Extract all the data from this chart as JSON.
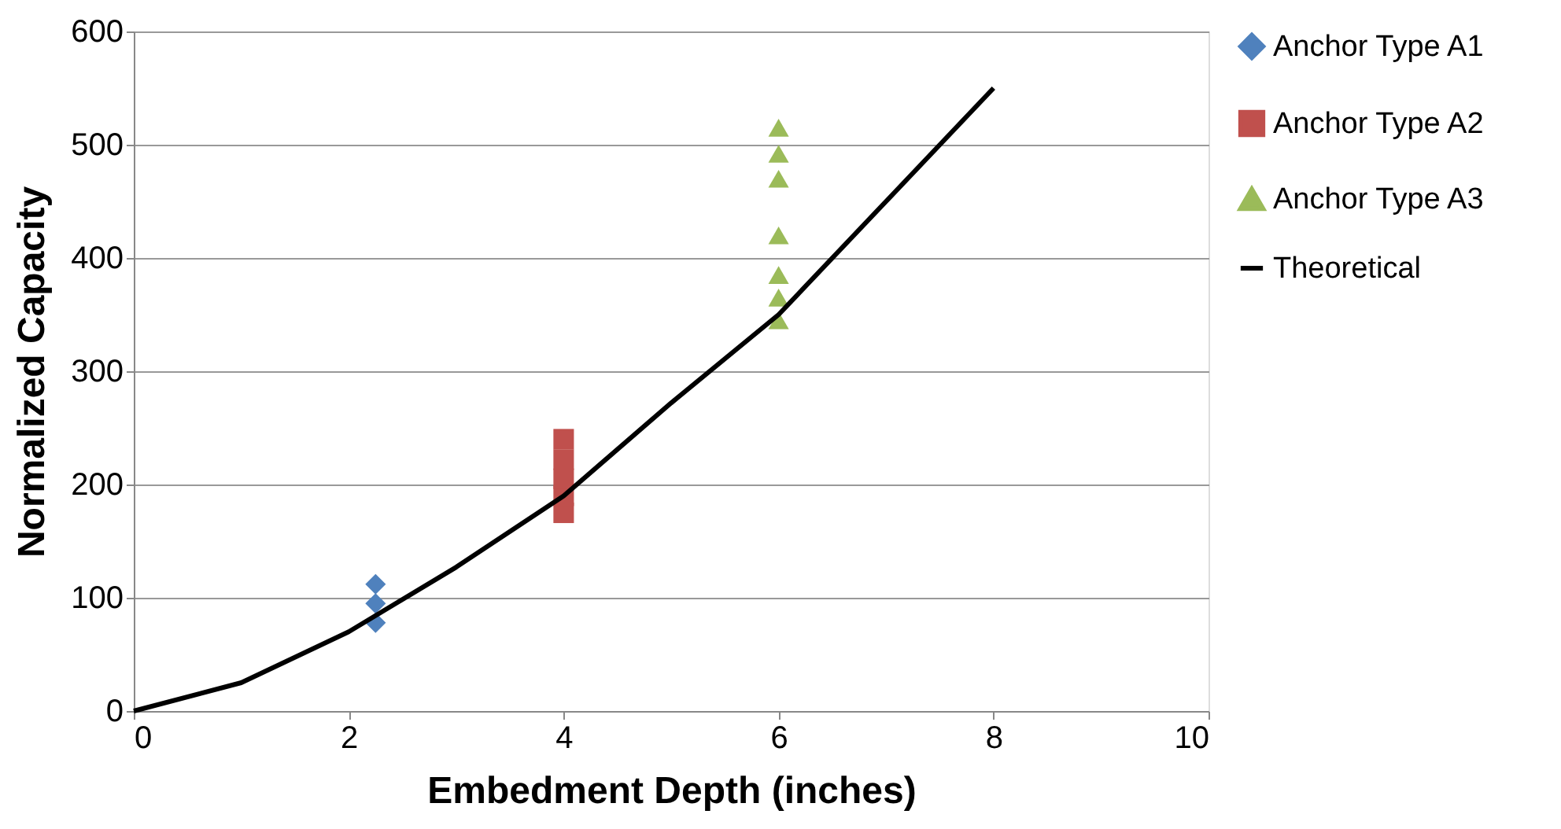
{
  "chart_data": {
    "type": "scatter",
    "xlabel": "Embedment Depth (inches)",
    "ylabel": "Normalized Capacity",
    "xlim": [
      0,
      10
    ],
    "xticks": [
      0,
      2,
      4,
      6,
      8,
      10
    ],
    "ylim": [
      0,
      600
    ],
    "yticks": [
      0,
      100,
      200,
      300,
      400,
      500,
      600
    ],
    "grid": "y",
    "legend": "right",
    "series": [
      {
        "name": "Anchor Type A1",
        "color": "#4f81bd",
        "marker": "diamond",
        "x": [
          2.25,
          2.25,
          2.25
        ],
        "values": [
          78,
          95,
          112
        ]
      },
      {
        "name": "Anchor Type A2",
        "color": "#c0504d",
        "marker": "square",
        "x": [
          4,
          4,
          4,
          4,
          4
        ],
        "values": [
          175,
          190,
          205,
          222,
          240
        ]
      },
      {
        "name": "Anchor Type A3",
        "color": "#9bbb59",
        "marker": "triangle",
        "x": [
          6,
          6,
          6,
          6,
          6,
          6,
          6
        ],
        "values": [
          345,
          365,
          385,
          420,
          470,
          492,
          515
        ]
      },
      {
        "name": "Theoretical",
        "color": "#000000",
        "type": "line",
        "marker": "none",
        "x": [
          0,
          1,
          2,
          3,
          4,
          5,
          6,
          7,
          8
        ],
        "values": [
          0,
          25,
          70,
          127,
          190,
          272,
          350,
          450,
          550
        ]
      }
    ]
  }
}
